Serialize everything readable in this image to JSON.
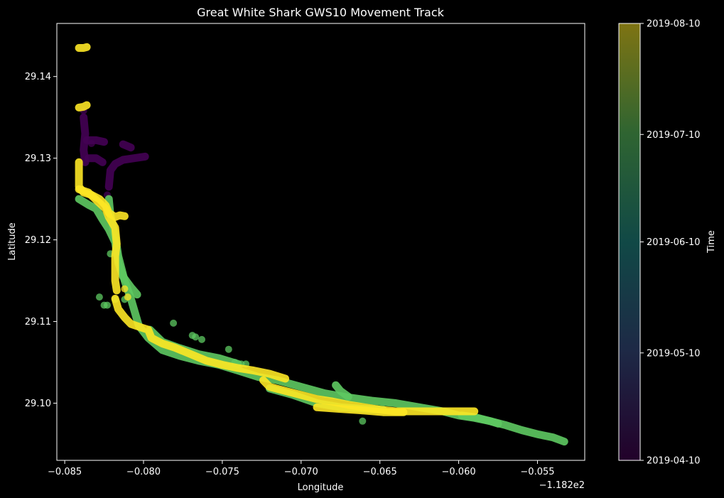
{
  "chart_data": {
    "type": "scatter",
    "title": "Great White Shark GWS10 Movement Track",
    "xlabel": "Longitude",
    "ylabel": "Latitude",
    "x_offset_label": "−1.182e2",
    "xlim": [
      -0.0855,
      -0.052
    ],
    "ylim": [
      29.093,
      29.1465
    ],
    "x_ticks": [
      {
        "value": -0.085,
        "label": "−0.085"
      },
      {
        "value": -0.08,
        "label": "−0.080"
      },
      {
        "value": -0.075,
        "label": "−0.075"
      },
      {
        "value": -0.07,
        "label": "−0.070"
      },
      {
        "value": -0.065,
        "label": "−0.065"
      },
      {
        "value": -0.06,
        "label": "−0.060"
      },
      {
        "value": -0.055,
        "label": "−0.055"
      }
    ],
    "y_ticks": [
      {
        "value": 29.1,
        "label": "29.10"
      },
      {
        "value": 29.11,
        "label": "29.11"
      },
      {
        "value": 29.12,
        "label": "29.12"
      },
      {
        "value": 29.13,
        "label": "29.13"
      },
      {
        "value": 29.14,
        "label": "29.14"
      }
    ],
    "background": "#000000",
    "grid": false,
    "colorbar": {
      "label": "Time",
      "range": [
        "2019-04-10",
        "2019-08-10"
      ],
      "ticks": [
        {
          "value": "2019-04-10",
          "label": "2019-04-10"
        },
        {
          "value": "2019-05-10",
          "label": "2019-05-10"
        },
        {
          "value": "2019-06-10",
          "label": "2019-06-10"
        },
        {
          "value": "2019-07-10",
          "label": "2019-07-10"
        },
        {
          "value": "2019-08-10",
          "label": "2019-08-10"
        }
      ],
      "colormap": "viridis",
      "alpha": 0.5
    },
    "series": [
      {
        "date": "2019-04-12",
        "color": "#440154",
        "tracks": [
          [
            [
              -0.0838,
              29.135
            ],
            [
              -0.0837,
              29.133
            ],
            [
              -0.0838,
              29.131
            ],
            [
              -0.0837,
              29.1295
            ]
          ],
          [
            [
              -0.0836,
              29.1322
            ],
            [
              -0.083,
              29.1322
            ],
            [
              -0.0825,
              29.132
            ]
          ],
          [
            [
              -0.0835,
              29.13
            ],
            [
              -0.083,
              29.13
            ],
            [
              -0.0826,
              29.1295
            ]
          ],
          [
            [
              -0.0822,
              29.1265
            ],
            [
              -0.0821,
              29.1285
            ],
            [
              -0.0818,
              29.1293
            ],
            [
              -0.0813,
              29.1298
            ],
            [
              -0.0806,
              29.13
            ],
            [
              -0.0799,
              29.1302
            ]
          ],
          [
            [
              -0.0813,
              29.1317
            ],
            [
              -0.0808,
              29.1313
            ]
          ]
        ],
        "points": [
          [
            -0.0838,
            29.1358
          ],
          [
            -0.0833,
            29.1318
          ],
          [
            -0.0823,
            29.1255
          ]
        ]
      },
      {
        "date": "2019-07-18",
        "color": "#5ec962",
        "tracks": [
          [
            [
              -0.0841,
              29.125
            ],
            [
              -0.0835,
              29.1243
            ],
            [
              -0.083,
              29.1238
            ],
            [
              -0.0826,
              29.1225
            ],
            [
              -0.0822,
              29.1213
            ],
            [
              -0.0818,
              29.1197
            ],
            [
              -0.0816,
              29.1172
            ],
            [
              -0.0813,
              29.1155
            ],
            [
              -0.0808,
              29.1142
            ],
            [
              -0.0804,
              29.1133
            ]
          ],
          [
            [
              -0.0822,
              29.125
            ],
            [
              -0.0821,
              29.123
            ],
            [
              -0.0818,
              29.1205
            ],
            [
              -0.0816,
              29.118
            ],
            [
              -0.0812,
              29.115
            ],
            [
              -0.0808,
              29.1128
            ],
            [
              -0.0803,
              29.1095
            ],
            [
              -0.0797,
              29.108
            ],
            [
              -0.0788,
              29.1065
            ],
            [
              -0.0777,
              29.1058
            ],
            [
              -0.0765,
              29.1052
            ],
            [
              -0.0752,
              29.1047
            ],
            [
              -0.074,
              29.104
            ],
            [
              -0.0727,
              29.1032
            ],
            [
              -0.0715,
              29.1028
            ],
            [
              -0.07,
              29.102
            ],
            [
              -0.0685,
              29.1012
            ],
            [
              -0.067,
              29.1007
            ],
            [
              -0.0655,
              29.1003
            ],
            [
              -0.064,
              29.1
            ],
            [
              -0.0625,
              29.0995
            ],
            [
              -0.061,
              29.099
            ],
            [
              -0.06,
              29.0985
            ],
            [
              -0.059,
              29.0982
            ],
            [
              -0.058,
              29.0978
            ],
            [
              -0.057,
              29.0973
            ],
            [
              -0.056,
              29.0967
            ],
            [
              -0.055,
              29.0962
            ],
            [
              -0.054,
              29.0958
            ],
            [
              -0.0533,
              29.0953
            ]
          ],
          [
            [
              -0.0796,
              29.109
            ],
            [
              -0.0788,
              29.1075
            ],
            [
              -0.0778,
              29.1068
            ],
            [
              -0.0765,
              29.106
            ],
            [
              -0.0752,
              29.1055
            ],
            [
              -0.074,
              29.1048
            ]
          ],
          [
            [
              -0.072,
              29.1018
            ],
            [
              -0.0705,
              29.101
            ],
            [
              -0.069,
              29.1
            ],
            [
              -0.0675,
              29.0995
            ],
            [
              -0.066,
              29.0993
            ],
            [
              -0.0648,
              29.0992
            ]
          ],
          [
            [
              -0.0678,
              29.1022
            ],
            [
              -0.0675,
              29.1015
            ],
            [
              -0.067,
              29.1008
            ]
          ],
          [
            [
              -0.0598,
              29.0985
            ],
            [
              -0.059,
              29.0983
            ],
            [
              -0.058,
              29.0978
            ],
            [
              -0.0575,
              29.0975
            ]
          ]
        ],
        "points": [
          [
            -0.0828,
            29.113
          ],
          [
            -0.0825,
            29.112
          ],
          [
            -0.0823,
            29.112
          ],
          [
            -0.0818,
            29.1127
          ],
          [
            -0.0812,
            29.1127
          ],
          [
            -0.0821,
            29.1183
          ],
          [
            -0.0781,
            29.1098
          ],
          [
            -0.0769,
            29.1083
          ],
          [
            -0.0767,
            29.1081
          ],
          [
            -0.0763,
            29.1078
          ],
          [
            -0.0746,
            29.1066
          ],
          [
            -0.0738,
            29.1048
          ],
          [
            -0.0742,
            29.105
          ],
          [
            -0.0735,
            29.1048
          ],
          [
            -0.0661,
            29.0978
          ]
        ]
      },
      {
        "date": "2019-08-09",
        "color": "#fde725",
        "tracks": [
          [
            [
              -0.0841,
              29.1435
            ],
            [
              -0.0838,
              29.1435
            ],
            [
              -0.0836,
              29.1436
            ]
          ],
          [
            [
              -0.0841,
              29.1362
            ],
            [
              -0.0838,
              29.1363
            ],
            [
              -0.0836,
              29.1365
            ]
          ],
          [
            [
              -0.0841,
              29.1295
            ],
            [
              -0.0841,
              29.128
            ],
            [
              -0.0841,
              29.1265
            ],
            [
              -0.0838,
              29.1258
            ],
            [
              -0.0833,
              29.1255
            ],
            [
              -0.0828,
              29.125
            ],
            [
              -0.0824,
              29.1242
            ],
            [
              -0.0822,
              29.1233
            ],
            [
              -0.0818,
              29.1228
            ],
            [
              -0.0815,
              29.123
            ],
            [
              -0.0812,
              29.1229
            ]
          ],
          [
            [
              -0.0841,
              29.1262
            ],
            [
              -0.0835,
              29.1258
            ],
            [
              -0.0829,
              29.1247
            ],
            [
              -0.0824,
              29.1238
            ],
            [
              -0.0822,
              29.1228
            ],
            [
              -0.0818,
              29.1215
            ],
            [
              -0.0817,
              29.1195
            ],
            [
              -0.0818,
              29.118
            ],
            [
              -0.0818,
              29.1165
            ],
            [
              -0.0818,
              29.115
            ],
            [
              -0.0817,
              29.1138
            ]
          ],
          [
            [
              -0.0818,
              29.1128
            ],
            [
              -0.0816,
              29.1115
            ],
            [
              -0.0812,
              29.1105
            ],
            [
              -0.0808,
              29.1097
            ],
            [
              -0.0802,
              29.1093
            ],
            [
              -0.0797,
              29.109
            ],
            [
              -0.0795,
              29.108
            ],
            [
              -0.0788,
              29.1073
            ],
            [
              -0.078,
              29.1068
            ],
            [
              -0.077,
              29.106
            ],
            [
              -0.076,
              29.1052
            ],
            [
              -0.075,
              29.1047
            ],
            [
              -0.074,
              29.1043
            ],
            [
              -0.073,
              29.104
            ],
            [
              -0.072,
              29.1036
            ],
            [
              -0.071,
              29.103
            ]
          ],
          [
            [
              -0.0724,
              29.1028
            ],
            [
              -0.072,
              29.102
            ],
            [
              -0.071,
              29.1015
            ],
            [
              -0.07,
              29.101
            ],
            [
              -0.069,
              29.1005
            ],
            [
              -0.068,
              29.1002
            ],
            [
              -0.067,
              29.0998
            ],
            [
              -0.066,
              29.0995
            ],
            [
              -0.065,
              29.0992
            ],
            [
              -0.064,
              29.099
            ],
            [
              -0.063,
              29.099
            ],
            [
              -0.062,
              29.099
            ],
            [
              -0.061,
              29.099
            ],
            [
              -0.06,
              29.099
            ],
            [
              -0.059,
              29.099
            ]
          ],
          [
            [
              -0.069,
              29.0995
            ],
            [
              -0.0675,
              29.0993
            ],
            [
              -0.066,
              29.0991
            ],
            [
              -0.0648,
              29.0989
            ],
            [
              -0.0635,
              29.0989
            ]
          ]
        ],
        "points": [
          [
            -0.0812,
            29.114
          ],
          [
            -0.081,
            29.113
          ]
        ]
      }
    ]
  }
}
